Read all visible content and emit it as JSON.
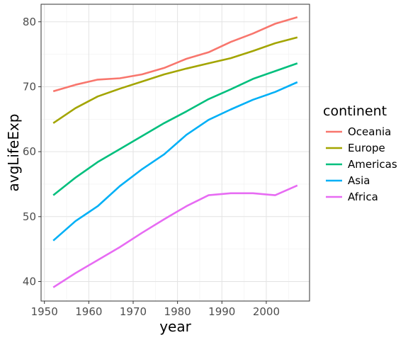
{
  "chart_data": {
    "type": "line",
    "xlabel": "year",
    "ylabel": "avgLifeExp",
    "xlim": [
      1949.25,
      2009.75
    ],
    "ylim": [
      37.0,
      82.7
    ],
    "x_ticks": [
      1950,
      1960,
      1970,
      1980,
      1990,
      2000
    ],
    "y_ticks": [
      40,
      50,
      60,
      70,
      80
    ],
    "grid": true,
    "legend": {
      "title": "continent",
      "position": "right"
    },
    "x": [
      1952,
      1957,
      1962,
      1967,
      1972,
      1977,
      1982,
      1987,
      1992,
      1997,
      2002,
      2007
    ],
    "series": [
      {
        "name": "Oceania",
        "color": "#F8766D",
        "values": [
          69.3,
          70.3,
          71.1,
          71.3,
          71.9,
          72.9,
          74.3,
          75.3,
          76.9,
          78.2,
          79.7,
          80.7
        ]
      },
      {
        "name": "Europe",
        "color": "#A3A500",
        "values": [
          64.4,
          66.7,
          68.5,
          69.7,
          70.8,
          71.9,
          72.8,
          73.6,
          74.4,
          75.5,
          76.7,
          77.6
        ]
      },
      {
        "name": "Americas",
        "color": "#00BF7D",
        "values": [
          53.3,
          56.0,
          58.4,
          60.4,
          62.4,
          64.4,
          66.2,
          68.1,
          69.6,
          71.2,
          72.4,
          73.6
        ]
      },
      {
        "name": "Asia",
        "color": "#00B0F6",
        "values": [
          46.3,
          49.3,
          51.6,
          54.7,
          57.3,
          59.6,
          62.6,
          64.9,
          66.5,
          68.0,
          69.2,
          70.7
        ]
      },
      {
        "name": "Africa",
        "color": "#E76BF3",
        "values": [
          39.1,
          41.3,
          43.3,
          45.3,
          47.5,
          49.6,
          51.6,
          53.3,
          53.6,
          53.6,
          53.3,
          54.8
        ]
      }
    ]
  }
}
